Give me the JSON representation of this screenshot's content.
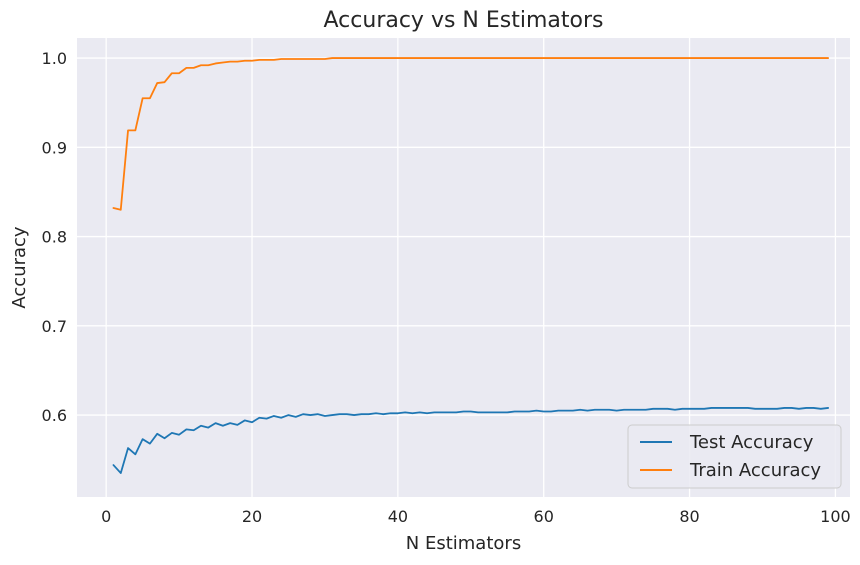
{
  "chart_data": {
    "type": "line",
    "title": "Accuracy vs N Estimators",
    "xlabel": "N Estimators",
    "ylabel": "Accuracy",
    "xlim": [
      -4,
      102
    ],
    "ylim": [
      0.5082,
      1.0225
    ],
    "xticks": [
      0,
      20,
      40,
      60,
      80,
      100
    ],
    "yticks": [
      0.6,
      0.7,
      0.8,
      0.9,
      1.0
    ],
    "xtick_labels": [
      "0",
      "20",
      "40",
      "60",
      "80",
      "100"
    ],
    "ytick_labels": [
      "0.6",
      "0.7",
      "0.8",
      "0.9",
      "1.0"
    ],
    "grid": true,
    "legend_position": "lower-right",
    "x": [
      1,
      2,
      3,
      4,
      5,
      6,
      7,
      8,
      9,
      10,
      11,
      12,
      13,
      14,
      15,
      16,
      17,
      18,
      19,
      20,
      21,
      22,
      23,
      24,
      25,
      26,
      27,
      28,
      29,
      30,
      31,
      32,
      33,
      34,
      35,
      36,
      37,
      38,
      39,
      40,
      41,
      42,
      43,
      44,
      45,
      46,
      47,
      48,
      49,
      50,
      51,
      52,
      53,
      54,
      55,
      56,
      57,
      58,
      59,
      60,
      61,
      62,
      63,
      64,
      65,
      66,
      67,
      68,
      69,
      70,
      71,
      72,
      73,
      74,
      75,
      76,
      77,
      78,
      79,
      80,
      81,
      82,
      83,
      84,
      85,
      86,
      87,
      88,
      89,
      90,
      91,
      92,
      93,
      94,
      95,
      96,
      97,
      98,
      99
    ],
    "series": [
      {
        "name": "Test Accuracy",
        "color": "#1f77b4",
        "values": [
          0.544,
          0.535,
          0.563,
          0.556,
          0.573,
          0.568,
          0.579,
          0.574,
          0.58,
          0.578,
          0.584,
          0.583,
          0.588,
          0.586,
          0.591,
          0.588,
          0.591,
          0.589,
          0.594,
          0.592,
          0.597,
          0.596,
          0.599,
          0.597,
          0.6,
          0.598,
          0.601,
          0.6,
          0.601,
          0.599,
          0.6,
          0.601,
          0.601,
          0.6,
          0.601,
          0.601,
          0.602,
          0.601,
          0.602,
          0.602,
          0.603,
          0.602,
          0.603,
          0.602,
          0.603,
          0.603,
          0.603,
          0.603,
          0.604,
          0.604,
          0.603,
          0.603,
          0.603,
          0.603,
          0.603,
          0.604,
          0.604,
          0.604,
          0.605,
          0.604,
          0.604,
          0.605,
          0.605,
          0.605,
          0.606,
          0.605,
          0.606,
          0.606,
          0.606,
          0.605,
          0.606,
          0.606,
          0.606,
          0.606,
          0.607,
          0.607,
          0.607,
          0.606,
          0.607,
          0.607,
          0.607,
          0.607,
          0.608,
          0.608,
          0.608,
          0.608,
          0.608,
          0.608,
          0.607,
          0.607,
          0.607,
          0.607,
          0.608,
          0.608,
          0.607,
          0.608,
          0.608,
          0.607,
          0.608
        ]
      },
      {
        "name": "Train Accuracy",
        "color": "#ff7f0e",
        "values": [
          0.832,
          0.83,
          0.919,
          0.919,
          0.955,
          0.955,
          0.972,
          0.973,
          0.983,
          0.983,
          0.989,
          0.989,
          0.992,
          0.992,
          0.994,
          0.995,
          0.996,
          0.996,
          0.997,
          0.997,
          0.998,
          0.998,
          0.998,
          0.999,
          0.999,
          0.999,
          0.999,
          0.999,
          0.999,
          0.999,
          1.0,
          1.0,
          1.0,
          1.0,
          1.0,
          1.0,
          1.0,
          1.0,
          1.0,
          1.0,
          1.0,
          1.0,
          1.0,
          1.0,
          1.0,
          1.0,
          1.0,
          1.0,
          1.0,
          1.0,
          1.0,
          1.0,
          1.0,
          1.0,
          1.0,
          1.0,
          1.0,
          1.0,
          1.0,
          1.0,
          1.0,
          1.0,
          1.0,
          1.0,
          1.0,
          1.0,
          1.0,
          1.0,
          1.0,
          1.0,
          1.0,
          1.0,
          1.0,
          1.0,
          1.0,
          1.0,
          1.0,
          1.0,
          1.0,
          1.0,
          1.0,
          1.0,
          1.0,
          1.0,
          1.0,
          1.0,
          1.0,
          1.0,
          1.0,
          1.0,
          1.0,
          1.0,
          1.0,
          1.0,
          1.0,
          1.0,
          1.0,
          1.0,
          1.0
        ]
      }
    ],
    "colors": {
      "plot_background": "#eaeaf2",
      "grid": "#ffffff",
      "text": "#262626"
    }
  }
}
